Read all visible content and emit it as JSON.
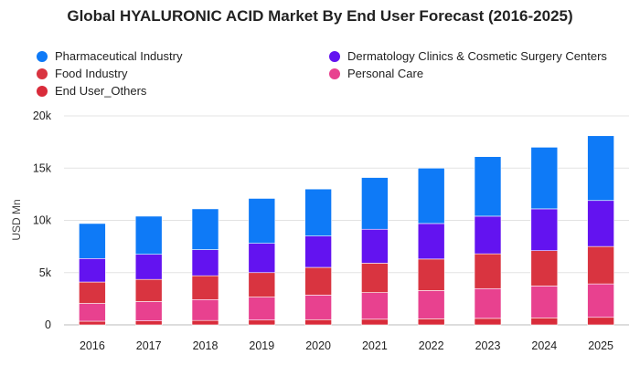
{
  "chart_data": {
    "type": "bar",
    "stacked": true,
    "title": "Global HYALURONIC ACID Market By End User Forecast (2016-2025)",
    "ylabel": "USD Mn",
    "xlabel": "",
    "ylim": [
      0,
      20000
    ],
    "yticks": [
      0,
      5000,
      10000,
      15000,
      20000
    ],
    "ytick_labels": [
      "0",
      "5k",
      "10k",
      "15k",
      "20k"
    ],
    "grid": true,
    "legend_position": "top",
    "categories": [
      "2016",
      "2017",
      "2018",
      "2019",
      "2020",
      "2021",
      "2022",
      "2023",
      "2024",
      "2025"
    ],
    "series": [
      {
        "name": "End User_Others",
        "color": "#d92b3a",
        "values": [
          350,
          380,
          420,
          460,
          500,
          540,
          580,
          620,
          670,
          720
        ]
      },
      {
        "name": "Personal Care",
        "color": "#e8418f",
        "values": [
          1700,
          1850,
          2000,
          2200,
          2350,
          2550,
          2700,
          2850,
          3050,
          3200
        ]
      },
      {
        "name": "Food Industry",
        "color": "#d93440",
        "values": [
          2050,
          2120,
          2280,
          2340,
          2650,
          2810,
          3020,
          3330,
          3380,
          3580
        ]
      },
      {
        "name": "Dermatology Clinics & Cosmetic Surgery Centers",
        "color": "#6313f0",
        "values": [
          2250,
          2400,
          2500,
          2800,
          3000,
          3250,
          3400,
          3600,
          4000,
          4400
        ]
      },
      {
        "name": "Pharmaceutical Industry",
        "color": "#0e7af7",
        "values": [
          3350,
          3650,
          3900,
          4300,
          4500,
          4950,
          5300,
          5700,
          5900,
          6200
        ]
      }
    ]
  },
  "legend": {
    "left": [
      {
        "label": "Pharmaceutical Industry",
        "color": "#0e7af7"
      },
      {
        "label": "Food Industry",
        "color": "#d93440"
      },
      {
        "label": "End User_Others",
        "color": "#d92b3a"
      }
    ],
    "right": [
      {
        "label": "Dermatology Clinics & Cosmetic Surgery Centers",
        "color": "#6313f0"
      },
      {
        "label": "Personal Care",
        "color": "#e8418f"
      }
    ]
  }
}
